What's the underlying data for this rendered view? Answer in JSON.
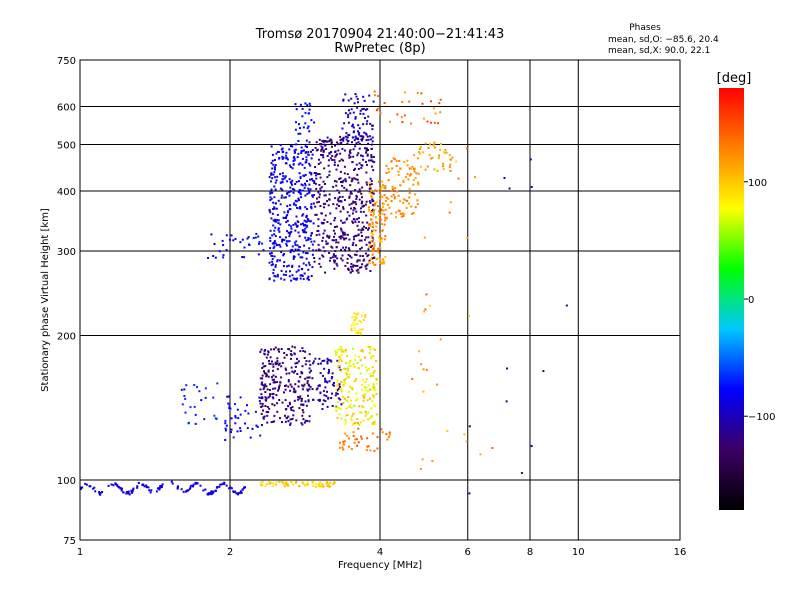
{
  "chart_data": {
    "type": "scatter",
    "title": "Tromsø 20170904 21:40:00−21:41:43",
    "subtitle": "RwPretec (8p)",
    "xlabel": "Frequency [MHz]",
    "ylabel": "Stationary phase Virtual Height [km]",
    "x_scale": "log",
    "y_scale": "log",
    "xlim": [
      1,
      16
    ],
    "ylim": [
      75,
      750
    ],
    "x_ticks": [
      {
        "value": 1,
        "label": "1"
      },
      {
        "value": 2,
        "label": "2"
      },
      {
        "value": 4,
        "label": "4"
      },
      {
        "value": 6,
        "label": "6"
      },
      {
        "value": 8,
        "label": "8"
      },
      {
        "value": 10,
        "label": "10"
      },
      {
        "value": 16,
        "label": "16"
      }
    ],
    "y_ticks": [
      {
        "value": 75,
        "label": "75"
      },
      {
        "value": 100,
        "label": "100"
      },
      {
        "value": 200,
        "label": "200"
      },
      {
        "value": 300,
        "label": "300"
      },
      {
        "value": 400,
        "label": "400"
      },
      {
        "value": 500,
        "label": "500"
      },
      {
        "value": 600,
        "label": "600"
      },
      {
        "value": 750,
        "label": "750"
      }
    ],
    "grid": true,
    "phases_info": {
      "heading": "Phases",
      "o_line": "mean, sd,O: −85.6, 20.4",
      "x_line": "mean, sd,X:  90.0, 22.1"
    },
    "colorbar": {
      "label": "[deg]",
      "range": [
        -180,
        180
      ],
      "ticks": [
        {
          "value": 100,
          "label": "100"
        },
        {
          "value": 0,
          "label": "0"
        },
        {
          "value": -100,
          "label": "−100"
        }
      ],
      "colors": [
        "#000000",
        "#3c0064",
        "#0000ff",
        "#00c8ff",
        "#00ff00",
        "#ffff00",
        "#ff8000",
        "#ff0000"
      ]
    },
    "clusters": [
      {
        "count": 150,
        "x": [
          1.0,
          2.15
        ],
        "y": [
          94,
          100
        ],
        "phase": [
          -95,
          -80
        ],
        "trace": "e_layer_o"
      },
      {
        "count": 70,
        "x": [
          2.3,
          3.25
        ],
        "y": [
          96,
          100
        ],
        "phase": [
          80,
          110
        ],
        "trace": "e_layer_x"
      },
      {
        "count": 40,
        "x": [
          1.8,
          2.5
        ],
        "y": [
          290,
          330
        ],
        "phase": [
          -90,
          -70
        ]
      },
      {
        "count": 420,
        "x": [
          2.4,
          2.95
        ],
        "y": [
          260,
          500
        ],
        "phase": [
          -100,
          -70
        ]
      },
      {
        "count": 30,
        "x": [
          2.7,
          2.95
        ],
        "y": [
          500,
          610
        ],
        "phase": [
          -90,
          -70
        ]
      },
      {
        "count": 500,
        "x": [
          2.95,
          3.9
        ],
        "y": [
          270,
          520
        ],
        "phase": [
          -135,
          -105
        ]
      },
      {
        "count": 80,
        "x": [
          3.35,
          3.9
        ],
        "y": [
          500,
          640
        ],
        "phase": [
          -115,
          -80
        ]
      },
      {
        "count": 120,
        "x": [
          3.8,
          4.1
        ],
        "y": [
          280,
          420
        ],
        "phase": [
          100,
          140
        ]
      },
      {
        "count": 90,
        "x": [
          4.1,
          4.8
        ],
        "y": [
          350,
          470
        ],
        "phase": [
          110,
          140
        ]
      },
      {
        "count": 40,
        "x": [
          4.6,
          5.6
        ],
        "y": [
          440,
          510
        ],
        "phase": [
          100,
          130
        ]
      },
      {
        "count": 30,
        "x": [
          3.9,
          5.4
        ],
        "y": [
          550,
          650
        ],
        "phase": [
          110,
          160
        ]
      },
      {
        "count": 40,
        "x": [
          1.95,
          2.3
        ],
        "y": [
          120,
          150
        ],
        "phase": [
          -90,
          -70
        ]
      },
      {
        "count": 260,
        "x": [
          2.3,
          2.9
        ],
        "y": [
          130,
          190
        ],
        "phase": [
          -135,
          -105
        ]
      },
      {
        "count": 80,
        "x": [
          2.9,
          3.35
        ],
        "y": [
          140,
          180
        ],
        "phase": [
          -120,
          -95
        ]
      },
      {
        "count": 200,
        "x": [
          3.25,
          3.95
        ],
        "y": [
          130,
          190
        ],
        "phase": [
          60,
          110
        ]
      },
      {
        "count": 40,
        "x": [
          3.3,
          4.2
        ],
        "y": [
          115,
          130
        ],
        "phase": [
          120,
          150
        ]
      },
      {
        "count": 30,
        "x": [
          3.5,
          3.75
        ],
        "y": [
          200,
          225
        ],
        "phase": [
          80,
          100
        ]
      },
      {
        "count": 25,
        "x": [
          1.6,
          1.9
        ],
        "y": [
          130,
          160
        ],
        "phase": [
          -80,
          -60
        ]
      },
      {
        "count": 30,
        "x": [
          4.5,
          6.8
        ],
        "y": [
          100,
          500
        ],
        "phase": [
          90,
          150
        ]
      },
      {
        "count": 12,
        "x": [
          6.0,
          9.5
        ],
        "y": [
          90,
          600
        ],
        "phase": [
          -130,
          -100
        ]
      }
    ]
  }
}
